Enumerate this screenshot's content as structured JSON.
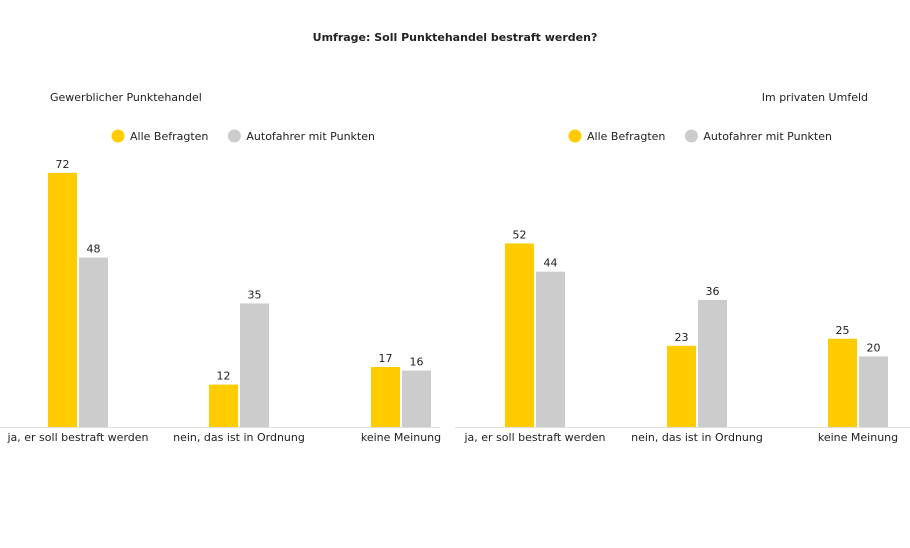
{
  "title": "Umfrage: Soll Punktehandel bestraft werden?",
  "chart_data": [
    {
      "type": "bar",
      "title": "Gewerblicher Punktehandel",
      "categories": [
        "ja, er soll bestraft werden",
        "nein, das ist in Ordnung",
        "keine Meinung"
      ],
      "series": [
        {
          "name": "Alle Befragten",
          "color": "#ffcc00",
          "values": [
            72,
            12,
            17
          ]
        },
        {
          "name": "Autofahrer mit Punkten",
          "color": "#cccccc",
          "values": [
            48,
            35,
            16
          ]
        }
      ]
    },
    {
      "type": "bar",
      "title": "Im privaten Umfeld",
      "categories": [
        "ja, er soll bestraft werden",
        "nein, das ist in Ordnung",
        "keine Meinung"
      ],
      "series": [
        {
          "name": "Alle Befragten",
          "color": "#ffcc00",
          "values": [
            52,
            23,
            25
          ]
        },
        {
          "name": "Autofahrer mit Punkten",
          "color": "#cccccc",
          "values": [
            44,
            36,
            20
          ]
        }
      ]
    }
  ]
}
